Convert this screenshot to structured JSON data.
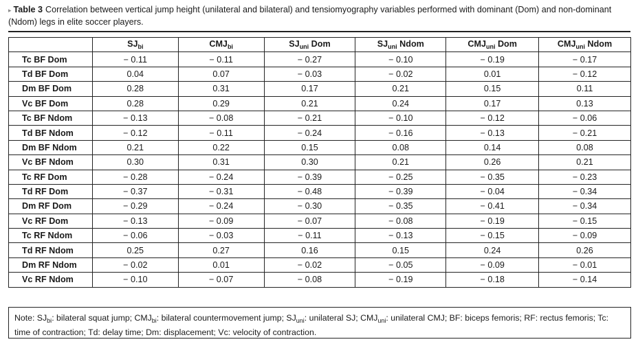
{
  "caption": {
    "marker": "▸",
    "label": "Table 3",
    "text": "Correlation between vertical jump height (unilateral and bilateral) and tensiomyography variables performed with dominant (Dom) and non-dominant (Ndom) legs in elite soccer players."
  },
  "table": {
    "columns": [
      {
        "base": "SJ",
        "sub": "bi",
        "suffix": ""
      },
      {
        "base": "CMJ",
        "sub": "bi",
        "suffix": ""
      },
      {
        "base": "SJ",
        "sub": "uni",
        "suffix": " Dom"
      },
      {
        "base": "SJ",
        "sub": "uni",
        "suffix": " Ndom"
      },
      {
        "base": "CMJ",
        "sub": "uni",
        "suffix": " Dom"
      },
      {
        "base": "CMJ",
        "sub": "uni",
        "suffix": " Ndom"
      }
    ],
    "rows": [
      {
        "label": "Tc BF Dom",
        "values": [
          "− 0.11",
          "− 0.11",
          "− 0.27",
          "− 0.10",
          "− 0.19",
          "− 0.17"
        ]
      },
      {
        "label": "Td BF Dom",
        "values": [
          "0.04",
          "0.07",
          "− 0.03",
          "− 0.02",
          "0.01",
          "− 0.12"
        ]
      },
      {
        "label": "Dm BF Dom",
        "values": [
          "0.28",
          "0.31",
          "0.17",
          "0.21",
          "0.15",
          "0.11"
        ]
      },
      {
        "label": "Vc BF Dom",
        "values": [
          "0.28",
          "0.29",
          "0.21",
          "0.24",
          "0.17",
          "0.13"
        ]
      },
      {
        "label": "Tc BF Ndom",
        "values": [
          "− 0.13",
          "− 0.08",
          "− 0.21",
          "− 0.10",
          "− 0.12",
          "− 0.06"
        ]
      },
      {
        "label": "Td BF Ndom",
        "values": [
          "− 0.12",
          "− 0.11",
          "− 0.24",
          "− 0.16",
          "− 0.13",
          "− 0.21"
        ]
      },
      {
        "label": "Dm BF Ndom",
        "values": [
          "0.21",
          "0.22",
          "0.15",
          "0.08",
          "0.14",
          "0.08"
        ]
      },
      {
        "label": "Vc BF Ndom",
        "values": [
          "0.30",
          "0.31",
          "0.30",
          "0.21",
          "0.26",
          "0.21"
        ]
      },
      {
        "label": "Tc RF Dom",
        "values": [
          "− 0.28",
          "− 0.24",
          "− 0.39",
          "− 0.25",
          "− 0.35",
          "− 0.23"
        ]
      },
      {
        "label": "Td RF Dom",
        "values": [
          "− 0.37",
          "− 0.31",
          "− 0.48",
          "− 0.39",
          "− 0.04",
          "− 0.34"
        ]
      },
      {
        "label": "Dm RF Dom",
        "values": [
          "− 0.29",
          "− 0.24",
          "− 0.30",
          "− 0.35",
          "− 0.41",
          "− 0.34"
        ]
      },
      {
        "label": "Vc RF Dom",
        "values": [
          "− 0.13",
          "− 0.09",
          "− 0.07",
          "− 0.08",
          "− 0.19",
          "− 0.15"
        ]
      },
      {
        "label": "Tc RF Ndom",
        "values": [
          "− 0.06",
          "− 0.03",
          "− 0.11",
          "− 0.13",
          "− 0.15",
          "− 0.09"
        ]
      },
      {
        "label": "Td RF Ndom",
        "values": [
          "0.25",
          "0.27",
          "0.16",
          "0.15",
          "0.24",
          "0.26"
        ]
      },
      {
        "label": "Dm RF Ndom",
        "values": [
          "− 0.02",
          "0.01",
          "− 0.02",
          "− 0.05",
          "− 0.09",
          "− 0.01"
        ]
      },
      {
        "label": "Vc RF Ndom",
        "values": [
          "− 0.10",
          "− 0.07",
          "− 0.08",
          "− 0.19",
          "− 0.18",
          "− 0.14"
        ]
      }
    ]
  },
  "note": {
    "lead": "Note: SJ",
    "sub1": "bi",
    "t1": ": bilateral squat jump; CMJ",
    "sub2": "bi",
    "t2": ": bilateral countermovement jump; SJ",
    "sub3": "uni",
    "t3": ": unilateral SJ; CMJ",
    "sub4": "uni",
    "t4": ": unilateral CMJ; BF: biceps femoris; RF: rectus femoris; Tc: time of contraction; Td: delay time; Dm: displacement; Vc: velocity of contraction."
  }
}
